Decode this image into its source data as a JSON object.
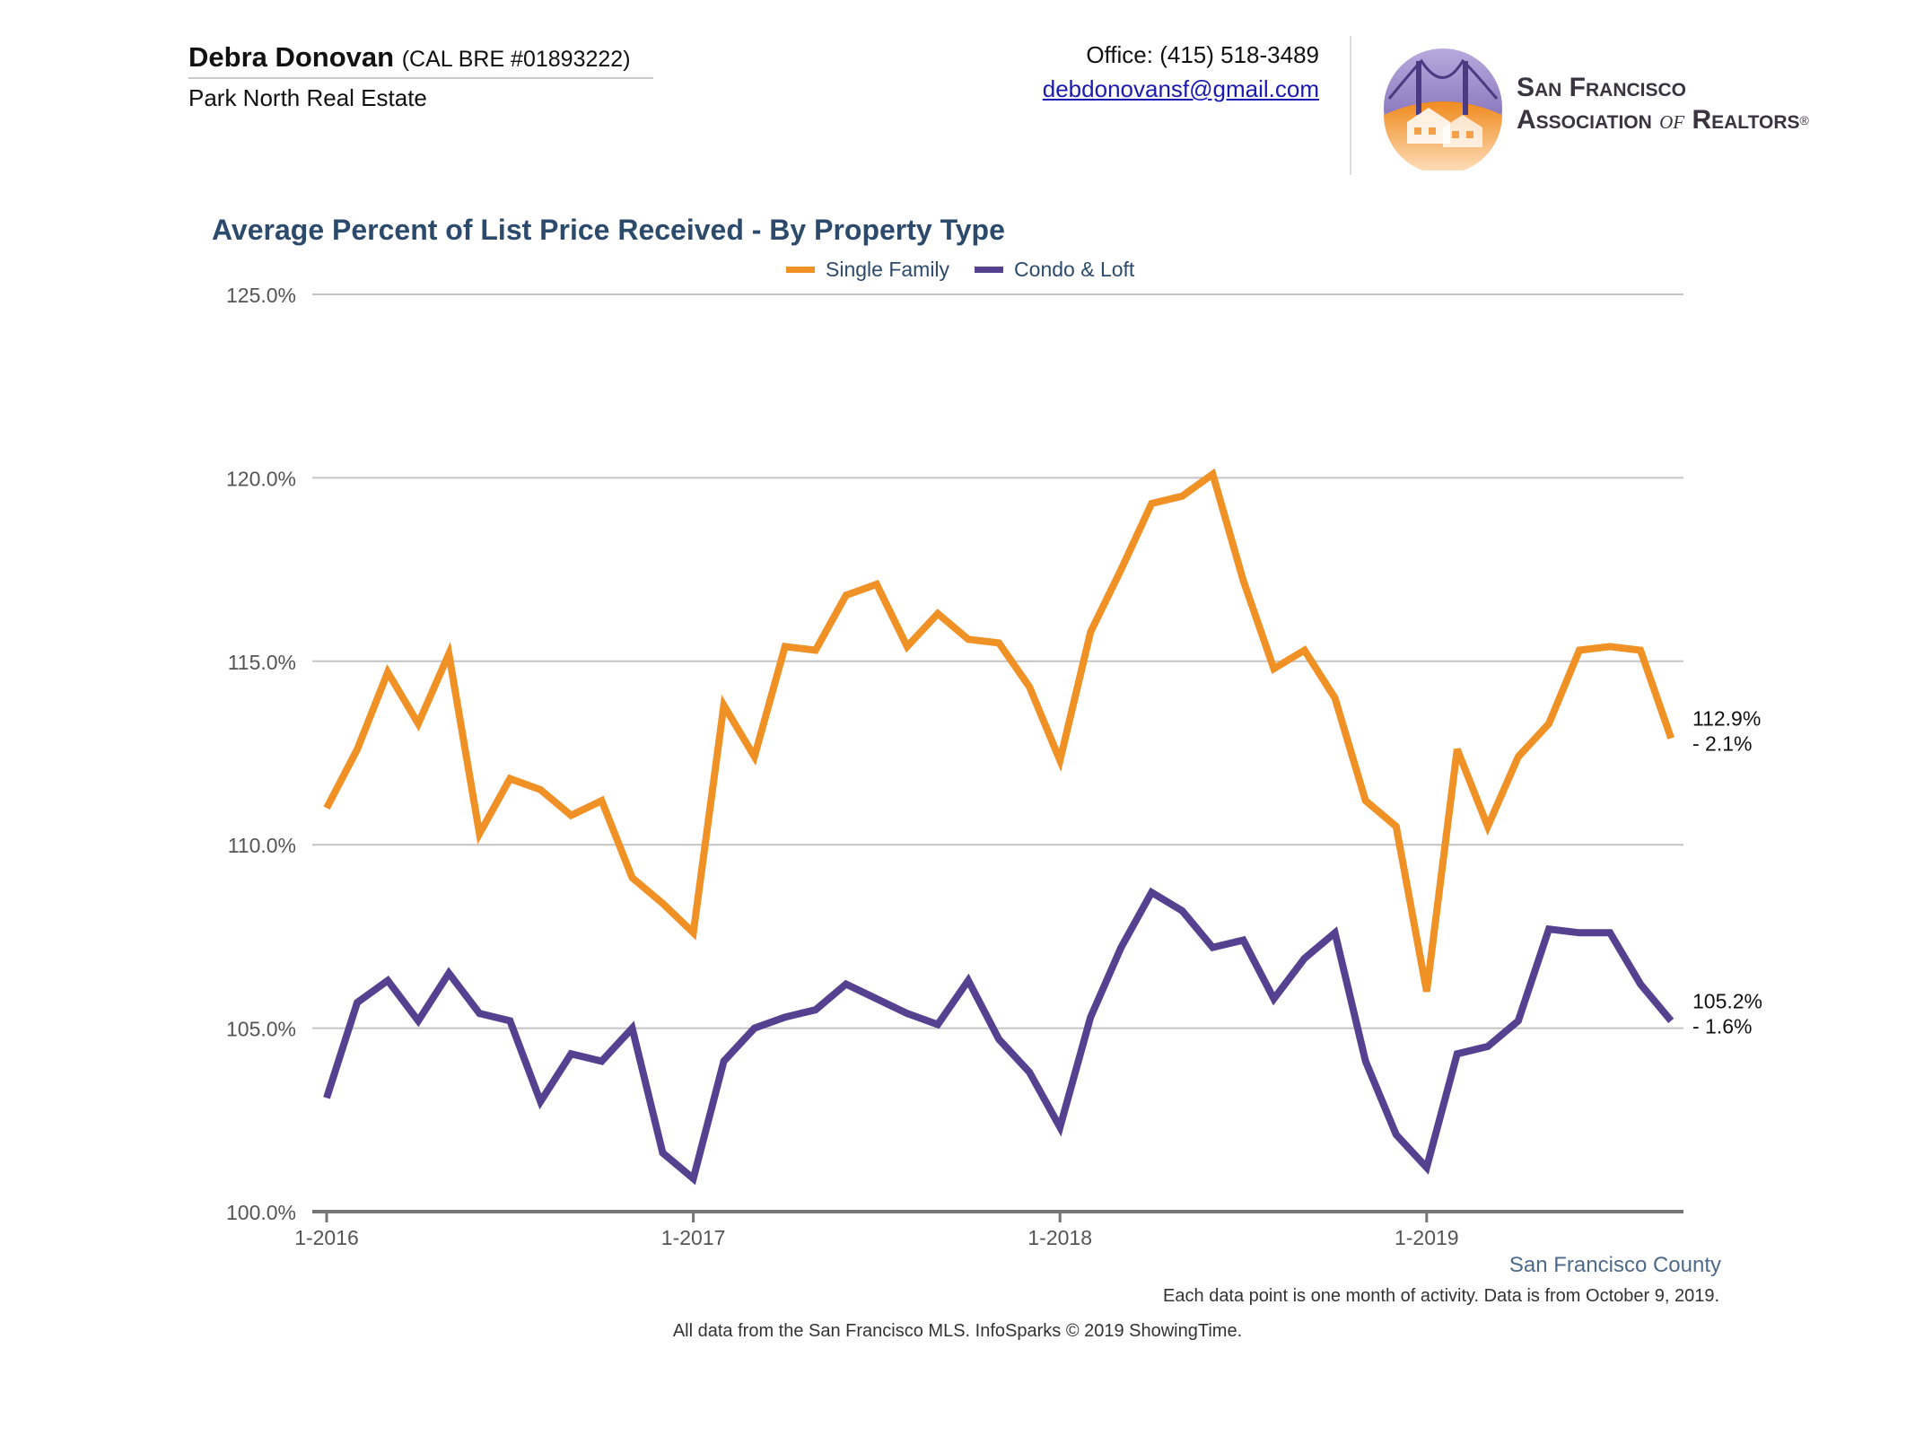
{
  "header": {
    "agent_name": "Debra Donovan",
    "agent_license": "(CAL BRE #01893222)",
    "agent_company": "Park North Real Estate",
    "office_phone": "Office: (415) 518-3489",
    "email": "debdonovansf@gmail.com",
    "logo_line1": "San Francisco",
    "logo_line2_a": "Association ",
    "logo_line2_of": "of",
    "logo_line2_b": " Realtors",
    "logo_registered": "®"
  },
  "colors": {
    "single_family": "#ef9125",
    "condo_loft": "#55418f",
    "title": "#2c4a6b",
    "grid": "#c4c4c4",
    "axis": "#757575"
  },
  "chart_data": {
    "type": "line",
    "title": "Average Percent of List Price Received - By Property Type",
    "legend_position": "top-center",
    "grid": true,
    "ylim": [
      100,
      125
    ],
    "y_ticks": [
      "100.0%",
      "105.0%",
      "110.0%",
      "115.0%",
      "120.0%",
      "125.0%"
    ],
    "y_tick_values": [
      100,
      105,
      110,
      115,
      120,
      125
    ],
    "x_ticks": [
      "1-2016",
      "1-2017",
      "1-2018",
      "1-2019"
    ],
    "x_tick_indices": [
      0,
      12,
      24,
      36
    ],
    "x_start": "2016-01",
    "x_end": "2019-09",
    "series": [
      {
        "name": "Single Family",
        "color": "#ef9125",
        "values": [
          111.0,
          112.6,
          114.7,
          113.3,
          115.2,
          110.3,
          111.8,
          111.5,
          110.8,
          111.2,
          109.1,
          108.4,
          107.6,
          113.8,
          112.4,
          115.4,
          115.3,
          116.8,
          117.1,
          115.4,
          116.3,
          115.6,
          115.5,
          114.3,
          112.3,
          115.8,
          117.5,
          119.3,
          119.5,
          120.1,
          117.2,
          114.8,
          115.3,
          114.0,
          111.2,
          110.5,
          106.0,
          112.6,
          110.5,
          112.4,
          113.3,
          115.3,
          115.4,
          115.3,
          112.9
        ],
        "last_label": "112.9%",
        "change_label": "- 2.1%"
      },
      {
        "name": "Condo & Loft",
        "color": "#55418f",
        "values": [
          103.1,
          105.7,
          106.3,
          105.2,
          106.5,
          105.4,
          105.2,
          103.0,
          104.3,
          104.1,
          105.0,
          101.6,
          100.9,
          104.1,
          105.0,
          105.3,
          105.5,
          106.2,
          105.8,
          105.4,
          105.1,
          106.3,
          104.7,
          103.8,
          102.3,
          105.3,
          107.2,
          108.7,
          108.2,
          107.2,
          107.4,
          105.8,
          106.9,
          107.6,
          104.1,
          102.1,
          101.2,
          104.3,
          104.5,
          105.2,
          107.7,
          107.6,
          107.6,
          106.2,
          105.2
        ],
        "last_label": "105.2%",
        "change_label": "- 1.6%"
      }
    ]
  },
  "footer": {
    "county": "San Francisco County",
    "note": "Each data point is one month of activity. Data is from October 9, 2019.",
    "source": "All data from the San Francisco MLS. InfoSparks © 2019 ShowingTime."
  }
}
